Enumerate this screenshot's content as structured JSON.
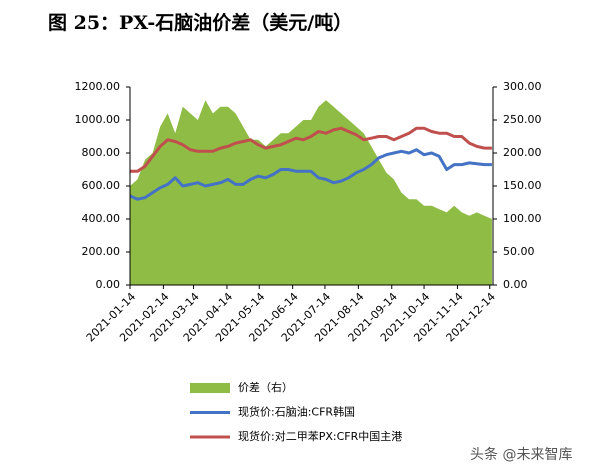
{
  "chart_data": {
    "type": "line",
    "title": "图 25：PX-石脑油价差（美元/吨）",
    "watermark": "头条 @未来智库",
    "x": [
      "2021-01-14",
      "2021-01-21",
      "2021-01-28",
      "2021-02-04",
      "2021-02-11",
      "2021-02-18",
      "2021-02-25",
      "2021-03-04",
      "2021-03-11",
      "2021-03-18",
      "2021-03-25",
      "2021-04-01",
      "2021-04-08",
      "2021-04-15",
      "2021-04-22",
      "2021-04-29",
      "2021-05-06",
      "2021-05-13",
      "2021-05-20",
      "2021-05-27",
      "2021-06-03",
      "2021-06-10",
      "2021-06-17",
      "2021-06-24",
      "2021-07-01",
      "2021-07-08",
      "2021-07-15",
      "2021-07-22",
      "2021-07-29",
      "2021-08-05",
      "2021-08-12",
      "2021-08-19",
      "2021-08-26",
      "2021-09-02",
      "2021-09-09",
      "2021-09-16",
      "2021-09-23",
      "2021-09-30",
      "2021-10-07",
      "2021-10-14",
      "2021-10-21",
      "2021-10-28",
      "2021-11-04",
      "2021-11-11",
      "2021-11-18",
      "2021-11-25",
      "2021-12-02",
      "2021-12-09",
      "2021-12-16"
    ],
    "series": [
      {
        "name": "价差（右）",
        "type": "area",
        "axis": "y2",
        "color": "#8fbc45",
        "values": [
          150,
          160,
          190,
          200,
          240,
          260,
          230,
          270,
          260,
          250,
          280,
          260,
          270,
          270,
          260,
          240,
          220,
          220,
          210,
          220,
          230,
          230,
          240,
          250,
          250,
          270,
          280,
          270,
          260,
          250,
          240,
          230,
          210,
          190,
          170,
          160,
          140,
          130,
          130,
          120,
          120,
          115,
          110,
          120,
          110,
          105,
          110,
          105,
          100
        ]
      },
      {
        "name": "现货价:石脑油:CFR韩国",
        "type": "line",
        "color": "#4472c4",
        "values": [
          540,
          520,
          530,
          560,
          590,
          610,
          650,
          600,
          610,
          620,
          600,
          610,
          620,
          640,
          610,
          610,
          640,
          660,
          650,
          670,
          700,
          700,
          690,
          690,
          690,
          650,
          640,
          620,
          630,
          650,
          680,
          700,
          730,
          770,
          790,
          800,
          810,
          800,
          820,
          790,
          800,
          780,
          700,
          730,
          730,
          740,
          735,
          730,
          730
        ]
      },
      {
        "name": "现货价:对二甲苯PX:CFR中国主港",
        "type": "line",
        "color": "#c0504d",
        "values": [
          690,
          690,
          720,
          780,
          840,
          880,
          870,
          850,
          820,
          810,
          810,
          810,
          830,
          840,
          860,
          870,
          880,
          850,
          830,
          840,
          850,
          870,
          890,
          880,
          900,
          930,
          920,
          940,
          950,
          930,
          910,
          880,
          890,
          900,
          900,
          880,
          900,
          920,
          950,
          950,
          930,
          920,
          920,
          900,
          900,
          860,
          840,
          830,
          830
        ]
      }
    ],
    "xticks": [
      "2021-01-14",
      "2021-02-14",
      "2021-03-14",
      "2021-04-14",
      "2021-05-14",
      "2021-06-14",
      "2021-07-14",
      "2021-08-14",
      "2021-09-14",
      "2021-10-14",
      "2021-11-14",
      "2021-12-14"
    ],
    "ylim": [
      0,
      1200
    ],
    "yticks": [
      {
        "value": 0,
        "label": "0.00"
      },
      {
        "value": 200,
        "label": "200.00"
      },
      {
        "value": 400,
        "label": "400.00"
      },
      {
        "value": 600,
        "label": "600.00"
      },
      {
        "value": 800,
        "label": "800.00"
      },
      {
        "value": 1000,
        "label": "1000.00"
      },
      {
        "value": 1200,
        "label": "1200.00"
      }
    ],
    "y2lim": [
      0,
      300
    ],
    "y2ticks": [
      {
        "value": 0,
        "label": "0.00"
      },
      {
        "value": 50,
        "label": "50.00"
      },
      {
        "value": 100,
        "label": "100.00"
      },
      {
        "value": 150,
        "label": "150.00"
      },
      {
        "value": 200,
        "label": "200.00"
      },
      {
        "value": 250,
        "label": "250.00"
      },
      {
        "value": 300,
        "label": "300.00"
      }
    ],
    "xlim": [
      "2021-01-14",
      "2021-12-17"
    ]
  }
}
